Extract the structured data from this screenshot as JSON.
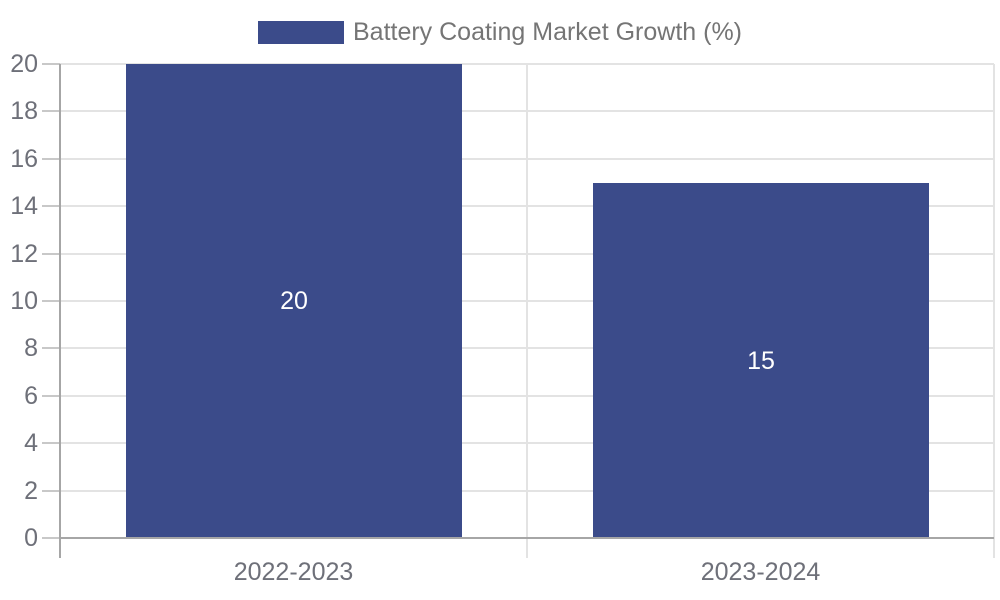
{
  "chart_data": {
    "type": "bar",
    "title": "Battery Coating Market Growth (%)",
    "categories": [
      "2022-2023",
      "2023-2024"
    ],
    "values": [
      20,
      15
    ],
    "bar_value_labels": [
      "20",
      "15"
    ],
    "ylim": [
      0,
      20
    ],
    "yticks": [
      0,
      2,
      4,
      6,
      8,
      10,
      12,
      14,
      16,
      18,
      20
    ],
    "xlabel": "",
    "ylabel": "",
    "grid": true,
    "legend": {
      "label": "Battery Coating Market Growth (%)",
      "position": "top-center"
    },
    "colors": {
      "bar": "#3B4B8A",
      "bar_value_label": "#FFFFFF",
      "tick_label": "#6E7079",
      "legend_text": "#757575",
      "grid_line": "#E3E3E3",
      "tick_mark": "#C8C8C8",
      "axis_line": "#A6A6A6",
      "background": "#FFFFFF"
    }
  }
}
